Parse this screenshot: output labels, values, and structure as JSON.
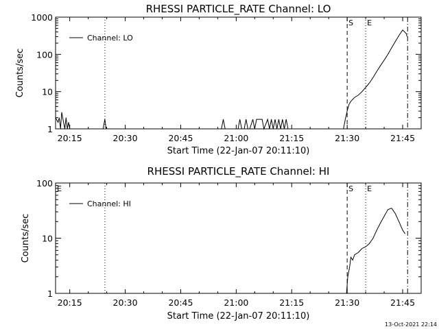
{
  "chart_data": [
    {
      "type": "line",
      "title": "RHESSI PARTICLE_RATE Channel: LO",
      "xlabel": "Start Time (22-Jan-07 20:11:10)",
      "ylabel": "Counts/sec",
      "y_scale": "log",
      "xlim": [
        "20:11:10",
        "21:50:00"
      ],
      "ylim": [
        1,
        1000
      ],
      "xticks": [
        "20:15",
        "20:30",
        "20:45",
        "21:00",
        "21:15",
        "21:30",
        "21:45"
      ],
      "yticks": [
        "1",
        "10",
        "100",
        "1000"
      ],
      "legend": {
        "label": "Channel: LO",
        "position": "top-left"
      },
      "series": [
        {
          "name": "Channel: LO",
          "x": [
            "20:11:10",
            "20:11:50",
            "20:12:10",
            "20:12:30",
            "20:12:50",
            "20:13:10",
            "20:13:40",
            "20:14:00",
            "20:14:20",
            "20:14:40",
            "20:15:00",
            "20:15:30",
            "20:16:00",
            "20:17:00",
            "20:20:00",
            "20:24:00",
            "20:24:30",
            "20:24:50",
            "20:25:10",
            "20:30:00",
            "20:40:00",
            "20:50:00",
            "20:56:00",
            "20:56:30",
            "20:57:00",
            "21:00:00",
            "21:00:30",
            "21:01:00",
            "21:01:30",
            "21:02:10",
            "21:02:40",
            "21:03:10",
            "21:03:40",
            "21:04:30",
            "21:05:00",
            "21:05:30",
            "21:06:30",
            "21:07:00",
            "21:07:30",
            "21:08:30",
            "21:09:00",
            "21:09:30",
            "21:10:00",
            "21:10:30",
            "21:11:00",
            "21:11:30",
            "21:12:00",
            "21:12:30",
            "21:13:00",
            "21:13:30",
            "21:14:00",
            "21:14:30",
            "21:15:00",
            "21:15:30",
            "21:16:00",
            "21:20:00",
            "21:27:00",
            "21:29:00",
            "21:29:30",
            "21:30:00",
            "21:30:30",
            "21:31:00",
            "21:32:00",
            "21:33:00",
            "21:34:00",
            "21:35:00",
            "21:36:00",
            "21:37:00",
            "21:38:00",
            "21:39:00",
            "21:40:00",
            "21:41:00",
            "21:42:00",
            "21:43:00",
            "21:44:00",
            "21:45:00",
            "21:46:00",
            "21:46:10"
          ],
          "y": [
            2,
            1.5,
            2,
            1,
            2.8,
            1.8,
            1,
            2,
            1,
            1.5,
            1,
            1,
            1,
            1,
            1,
            1,
            1.8,
            1,
            1,
            1,
            1,
            1,
            1,
            1.8,
            1,
            1,
            1,
            1.8,
            1,
            1,
            1.8,
            1,
            1,
            1.8,
            1,
            1.8,
            1.8,
            1.8,
            1,
            1.8,
            1,
            1.8,
            1,
            1.8,
            1,
            1.8,
            1,
            1.8,
            1,
            1.8,
            1,
            1,
            1,
            1,
            1,
            1,
            1,
            1,
            1.8,
            3,
            4.5,
            5.5,
            7,
            8,
            10,
            13,
            17,
            24,
            35,
            50,
            70,
            100,
            150,
            220,
            320,
            450,
            360,
            300
          ]
        }
      ],
      "markers": [
        {
          "label": "",
          "x": "20:24:30",
          "style": "dotted"
        },
        {
          "label": "S",
          "x": "21:30:00",
          "style": "dashed"
        },
        {
          "label": "E",
          "x": "21:35:00",
          "style": "dotted"
        },
        {
          "label": "",
          "x": "21:46:20",
          "style": "dash-dot"
        }
      ]
    },
    {
      "type": "line",
      "title": "RHESSI PARTICLE_RATE Channel: HI",
      "xlabel": "Start Time (22-Jan-07 20:11:10)",
      "ylabel": "Counts/sec",
      "y_scale": "log",
      "xlim": [
        "20:11:10",
        "21:50:00"
      ],
      "ylim": [
        1,
        100
      ],
      "xticks": [
        "20:15",
        "20:30",
        "20:45",
        "21:00",
        "21:15",
        "21:30",
        "21:45"
      ],
      "yticks": [
        "1",
        "10",
        "100"
      ],
      "legend": {
        "label": "Channel: HI",
        "position": "top-left"
      },
      "corner_label": "E",
      "series": [
        {
          "name": "Channel: HI",
          "x": [
            "21:29:50",
            "21:30:10",
            "21:30:40",
            "21:31:00",
            "21:31:30",
            "21:32:00",
            "21:33:00",
            "21:34:00",
            "21:35:00",
            "21:36:00",
            "21:37:00",
            "21:38:00",
            "21:39:00",
            "21:40:00",
            "21:41:00",
            "21:42:00",
            "21:43:00",
            "21:44:00",
            "21:45:00",
            "21:45:40"
          ],
          "y": [
            1,
            2,
            3,
            4.5,
            4,
            5,
            5.5,
            6.5,
            7,
            8,
            10,
            14,
            19,
            25,
            33,
            35,
            28,
            20,
            14,
            12
          ]
        }
      ],
      "markers": [
        {
          "label": "",
          "x": "20:24:30",
          "style": "dotted"
        },
        {
          "label": "S",
          "x": "21:30:00",
          "style": "dashed"
        },
        {
          "label": "E",
          "x": "21:35:00",
          "style": "dotted"
        },
        {
          "label": "",
          "x": "21:46:20",
          "style": "dash-dot"
        }
      ]
    }
  ],
  "footer": {
    "timestamp": "13-Oct-2021 22:14"
  }
}
